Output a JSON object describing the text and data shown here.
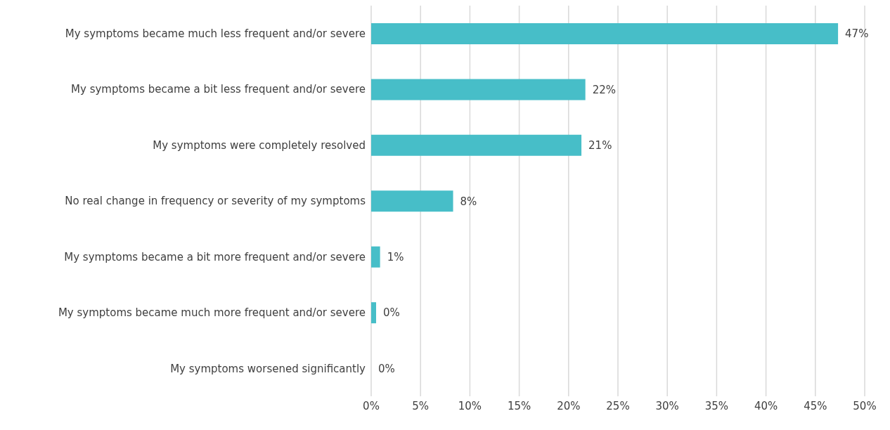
{
  "chart_data": {
    "type": "bar",
    "orientation": "horizontal",
    "categories": [
      "My symptoms became much less frequent and/or severe",
      "My symptoms became a bit less frequent and/or severe",
      "My symptoms were completely resolved",
      "No real change in frequency or severity of my symptoms",
      "My symptoms became a bit more frequent and/or severe",
      "My symptoms became much more frequent and/or severe",
      "My symptoms worsened significantly"
    ],
    "values": [
      47.3,
      21.7,
      21.3,
      8.3,
      0.9,
      0.5,
      0
    ],
    "value_labels": [
      "47%",
      "22%",
      "21%",
      "8%",
      "1%",
      "0%",
      "0%"
    ],
    "color": "#47bec8",
    "xlim": [
      0,
      50
    ],
    "xticks": [
      {
        "value": 0,
        "label": "0%"
      },
      {
        "value": 5,
        "label": "5%"
      },
      {
        "value": 10,
        "label": "10%"
      },
      {
        "value": 15,
        "label": "15%"
      },
      {
        "value": 20,
        "label": "20%"
      },
      {
        "value": 25,
        "label": "25%"
      },
      {
        "value": 30,
        "label": "30%"
      },
      {
        "value": 35,
        "label": "35%"
      },
      {
        "value": 40,
        "label": "40%"
      },
      {
        "value": 45,
        "label": "45%"
      },
      {
        "value": 50,
        "label": "50%"
      }
    ],
    "grid": "x"
  }
}
